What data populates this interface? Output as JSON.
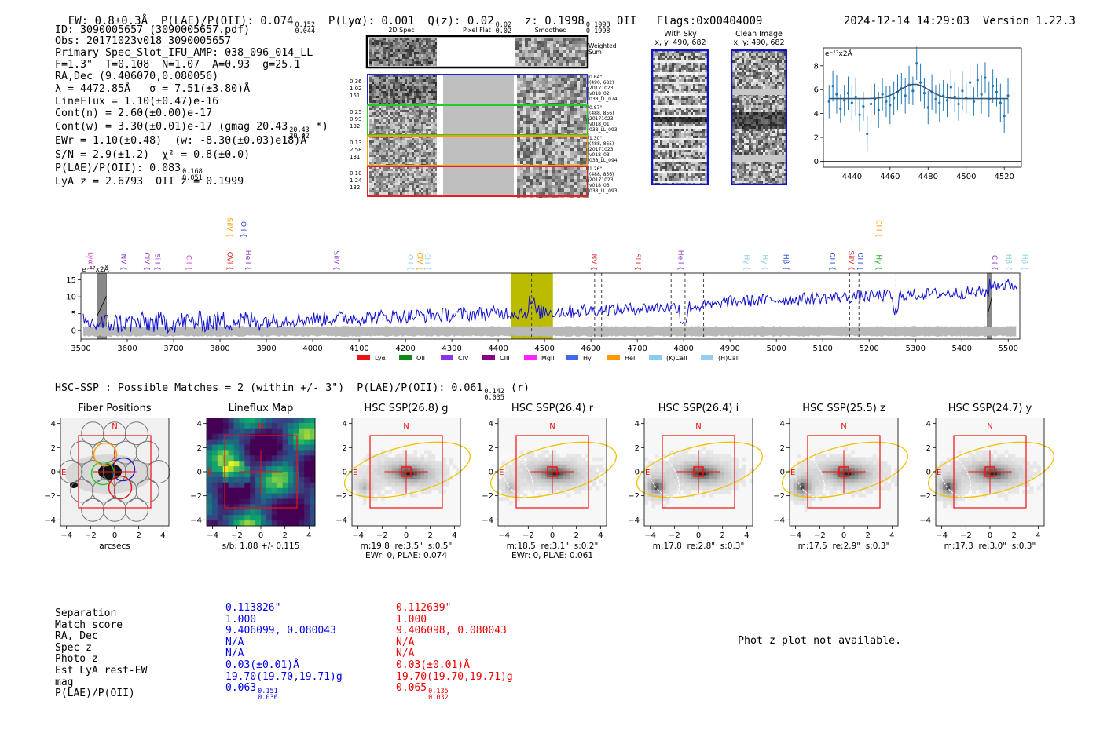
{
  "header": {
    "ew": "EW: 0.8±0.3Å",
    "plae_label": "P(LAE)/P(OII): 0.074",
    "plae_hi": "0.152",
    "plae_lo": "0.044",
    "plya": "P(Lyα): 0.001",
    "qz_label": "Q(z): 0.02",
    "qz_hi": "0.02",
    "qz_lo": "0.02",
    "z_label": "z: 0.1998",
    "z_hi": "0.1998",
    "z_lo": "0.1998",
    "z_line": "OII",
    "flags": "Flags:0x00404009",
    "timestamp": "2024-12-14 14:29:03",
    "version": "Version 1.22.3"
  },
  "info": {
    "id": "ID: 3090005657 (3090005657.pdf)",
    "obs": "Obs: 20171023v018_3090005657",
    "primary": "Primary Spec_Slot_IFU_AMP: 038_096_014_LL",
    "params": "F=1.3\"  T=0.108  N=1.07  A=0.93  g=25.1",
    "radec": "RA,Dec (9.406070,0.080056)",
    "lambda": "λ = 4472.85Å   σ = 7.51(±3.80)Å",
    "lineflux": "LineFlux = 1.10(±0.47)e-16",
    "contn": "Cont(n) = 2.60(±0.00)e-17",
    "contw": "Cont(w) = 3.30(±0.01)e-17 (gmag 20.43",
    "contw_hi": "20.43",
    "contw_lo": "20.42",
    "contw_end": "*)",
    "ewr": "EWr = 1.10(±0.48)  (w: -8.30(±0.03)e18)Å",
    "sn": "S/N = 2.9(±1.2)  χ² = 0.8(±0.0)",
    "plae": "P(LAE)/P(OII): 0.083",
    "plae_hi": "0.168",
    "plae_lo": "0.051",
    "lya": "LyA z = 2.6793  OII z = 0.1999"
  },
  "spec2d": {
    "col_2d": "2D Spec",
    "col_flat": "Pixel Flat",
    "col_smooth": "Smoothed",
    "weighted": "Weighted\nSum",
    "rows": [
      {
        "left": "0.36\n1.02\n151",
        "right": "0.64\"\n(490, 682)\n20171023\nv018_02\n038_LL_074",
        "color": "#2222cc"
      },
      {
        "left": "0.25\n0.93\n132",
        "right": "0.87\"\n(488, 856)\n20171023\nv018_01\n038_LL_093",
        "color": "#22cc22"
      },
      {
        "left": "0.13\n2.58\n131",
        "right": "1.30\"\n(488, 865)\n20171023\nv018_03\n038_LL_094",
        "color": "#ff9900"
      },
      {
        "left": "0.10\n1.24\n132",
        "right": "1.26\"\n(488, 856)\n20171023\nv018_03\n038_LL_093",
        "color": "#dd2222"
      }
    ]
  },
  "sky": {
    "with_sky_title": "With Sky",
    "with_sky_coords": "x, y: 490, 682",
    "clean_title": "Clean Image",
    "clean_coords": "x, y: 490, 682"
  },
  "zoom_plot": {
    "ylabel": "e⁻¹⁷x2Å",
    "xticks": [
      "4440",
      "4460",
      "4480",
      "4500",
      "4520"
    ],
    "yticks": [
      "0",
      "2",
      "4",
      "6",
      "8"
    ],
    "xlim": [
      4425,
      4529
    ],
    "ylim": [
      -0.5,
      9.5
    ],
    "points": [
      [
        4428,
        5.0,
        1.4
      ],
      [
        4430,
        6.3,
        1.3
      ],
      [
        4432,
        5.6,
        1.6
      ],
      [
        4434,
        4.4,
        1.2
      ],
      [
        4436,
        5.1,
        1.3
      ],
      [
        4438,
        5.7,
        1.4
      ],
      [
        4440,
        4.9,
        1.5
      ],
      [
        4442,
        5.4,
        1.6
      ],
      [
        4444,
        3.9,
        1.4
      ],
      [
        4446,
        4.6,
        1.2
      ],
      [
        4448,
        2.3,
        1.5
      ],
      [
        4450,
        4.8,
        1.6
      ],
      [
        4452,
        5.2,
        1.3
      ],
      [
        4454,
        4.3,
        1.5
      ],
      [
        4456,
        5.6,
        1.4
      ],
      [
        4458,
        5.0,
        1.3
      ],
      [
        4460,
        4.7,
        1.6
      ],
      [
        4462,
        5.3,
        1.4
      ],
      [
        4464,
        5.8,
        1.5
      ],
      [
        4466,
        6.1,
        1.3
      ],
      [
        4468,
        5.5,
        1.5
      ],
      [
        4470,
        6.4,
        1.6
      ],
      [
        4472,
        5.9,
        1.2
      ],
      [
        4474,
        8.2,
        1.4
      ],
      [
        4476,
        6.6,
        1.6
      ],
      [
        4478,
        5.7,
        1.3
      ],
      [
        4480,
        4.5,
        1.4
      ],
      [
        4482,
        5.8,
        1.5
      ],
      [
        4484,
        5.2,
        1.2
      ],
      [
        4486,
        4.9,
        1.6
      ],
      [
        4488,
        5.5,
        1.3
      ],
      [
        4490,
        5.1,
        1.4
      ],
      [
        4492,
        6.2,
        1.5
      ],
      [
        4494,
        5.4,
        1.3
      ],
      [
        4496,
        4.8,
        1.4
      ],
      [
        4498,
        5.9,
        1.6
      ],
      [
        4500,
        5.3,
        1.3
      ],
      [
        4502,
        6.6,
        1.5
      ],
      [
        4504,
        5.0,
        1.2
      ],
      [
        4506,
        6.8,
        1.4
      ],
      [
        4508,
        5.6,
        1.6
      ],
      [
        4510,
        7.0,
        1.3
      ],
      [
        4512,
        5.2,
        1.5
      ],
      [
        4514,
        6.3,
        1.4
      ],
      [
        4516,
        5.8,
        1.2
      ],
      [
        4518,
        4.9,
        1.6
      ],
      [
        4520,
        3.8,
        1.4
      ],
      [
        4522,
        5.5,
        1.5
      ]
    ],
    "fit": {
      "continuum": 5.25,
      "amp": 1.2,
      "center": 4472.85,
      "sigma": 7.51
    }
  },
  "full_spec": {
    "ylabel": "e⁻¹⁷x2Å",
    "xlim": [
      3500,
      5525
    ],
    "ylim": [
      -2.5,
      17
    ],
    "xticks": [
      "3500",
      "3600",
      "3700",
      "3800",
      "3900",
      "4000",
      "4100",
      "4200",
      "4300",
      "4400",
      "4500",
      "4600",
      "4700",
      "4800",
      "4900",
      "5000",
      "5100",
      "5200",
      "5300",
      "5400",
      "5500"
    ],
    "yticks": [
      "0",
      "5",
      "10",
      "15"
    ],
    "highlight": [
      4428,
      4518
    ],
    "dashed": [
      4472,
      4608,
      4623,
      4773,
      4803,
      4843,
      5158,
      5178,
      5258
    ],
    "shaded": [
      [
        3535,
        3555
      ],
      [
        5455,
        5465
      ]
    ],
    "lines": [
      {
        "name": "Lyα",
        "x": 3511,
        "row": 1,
        "color": "#cc44cc"
      },
      {
        "name": "NV",
        "x": 3582,
        "row": 1,
        "color": "#8833cc"
      },
      {
        "name": "CIV",
        "x": 3632,
        "row": 1,
        "color": "#8833cc"
      },
      {
        "name": "SiII",
        "x": 3655,
        "row": 1,
        "color": "#8833cc"
      },
      {
        "name": "CII",
        "x": 3723,
        "row": 1,
        "color": "#cc44cc"
      },
      {
        "name": "SiIV",
        "x": 3811,
        "row": 0,
        "color": "#ff9900"
      },
      {
        "name": "OII",
        "x": 3841,
        "row": 0,
        "color": "#2244dd"
      },
      {
        "name": "OVI",
        "x": 3811,
        "row": 1,
        "color": "#dd2222"
      },
      {
        "name": "HeII",
        "x": 3851,
        "row": 1,
        "color": "#8833cc"
      },
      {
        "name": "SiIV",
        "x": 4041,
        "row": 1,
        "color": "#8833cc"
      },
      {
        "name": "OII",
        "x": 4201,
        "row": 1,
        "color": "#88ccee"
      },
      {
        "name": "CIV",
        "x": 4221,
        "row": 1,
        "color": "#ff9900"
      },
      {
        "name": "CIII",
        "x": 4237,
        "row": 1,
        "color": "#88ccee"
      },
      {
        "name": "NV",
        "x": 4596,
        "row": 1,
        "color": "#dd2222"
      },
      {
        "name": "SiII",
        "x": 4691,
        "row": 1,
        "color": "#dd2222"
      },
      {
        "name": "HeII",
        "x": 4784,
        "row": 1,
        "color": "#8833cc"
      },
      {
        "name": "Hγ",
        "x": 4926,
        "row": 1,
        "color": "#88ccee"
      },
      {
        "name": "Hγ",
        "x": 4966,
        "row": 1,
        "color": "#88ccee"
      },
      {
        "name": "Hβ",
        "x": 5011,
        "row": 1,
        "color": "#2244dd"
      },
      {
        "name": "OIII",
        "x": 5111,
        "row": 1,
        "color": "#2244dd"
      },
      {
        "name": "SiIV",
        "x": 5151,
        "row": 1,
        "color": "#dd2222"
      },
      {
        "name": "OIII",
        "x": 5171,
        "row": 1,
        "color": "#2244dd"
      },
      {
        "name": "CIII",
        "x": 5211,
        "row": 0,
        "color": "#ff9900"
      },
      {
        "name": "Hγ",
        "x": 5211,
        "row": 1,
        "color": "#22aa22"
      },
      {
        "name": "CII",
        "x": 5461,
        "row": 1,
        "color": "#8833cc"
      },
      {
        "name": "Hβ",
        "x": 5491,
        "row": 1,
        "color": "#88ccee"
      },
      {
        "name": "Hβ",
        "x": 5526,
        "row": 1,
        "color": "#88ccee"
      }
    ],
    "legend": [
      {
        "name": "Lyα",
        "color": "#ee1111"
      },
      {
        "name": "OII",
        "color": "#118811"
      },
      {
        "name": "CIV",
        "color": "#8833ee"
      },
      {
        "name": "CIII",
        "color": "#880088"
      },
      {
        "name": "MgII",
        "color": "#ff22ff"
      },
      {
        "name": "Hγ",
        "color": "#4466ee"
      },
      {
        "name": "HeII",
        "color": "#ff9900"
      },
      {
        "name": "(K)CaII",
        "color": "#88ccee"
      },
      {
        "name": "(H)CaII",
        "color": "#99ccee"
      }
    ]
  },
  "hsc": {
    "title": "HSC-SSP : Possible Matches = 2 (within +/- 3\")  P(LAE)/P(OII): 0.061",
    "title_hi": "0.142",
    "title_lo": "0.035",
    "title_end": "(r)",
    "ticks_x": [
      "−4",
      "−2",
      "0",
      "2",
      "4"
    ],
    "ticks_y": [
      "4",
      "2",
      "0",
      "−2",
      "−4"
    ],
    "panels": [
      {
        "title": "Fiber Positions",
        "caption": "arcsecs",
        "type": "fibers"
      },
      {
        "title": "Lineflux Map",
        "caption": "s/b: 1.88 +/- 0.115",
        "type": "lineflux"
      },
      {
        "title": "HSC SSP(26.8) g",
        "caption": "m:19.8  re:3.5\"  s:0.5\"\nEWr: 0, PLAE: 0.074",
        "type": "img"
      },
      {
        "title": "HSC SSP(26.4) r",
        "caption": "m:18.5  re:3.1\"  s:0.2\"\nEWr: 0, PLAE: 0.061",
        "type": "img"
      },
      {
        "title": "HSC SSP(26.4) i",
        "caption": "m:17.8  re:2.8\"  s:0.3\"",
        "type": "img"
      },
      {
        "title": "HSC SSP(25.5) z",
        "caption": "m:17.5  re:2.9\"  s:0.3\"",
        "type": "img"
      },
      {
        "title": "HSC SSP(24.7) y",
        "caption": "m:17.3  re:3.0\"  s:0.3\"",
        "type": "img"
      }
    ],
    "label_n": "N",
    "label_e": "E"
  },
  "matches": {
    "labels": [
      "Separation",
      "Match score",
      "RA, Dec",
      "Spec z",
      "Photo z",
      "Est LyA rest-EW",
      "mag",
      "P(LAE)/P(OII)"
    ],
    "blue": [
      "0.113826\"",
      "1.000",
      "9.406099, 0.080043",
      "N/A",
      "N/A",
      "0.03(±0.01)Å",
      "19.70(19.70,19.71)g",
      "0.063"
    ],
    "blue_hi": "0.151",
    "blue_lo": "0.036",
    "red": [
      "0.112639\"",
      "1.000",
      "9.406098, 0.080043",
      "N/A",
      "N/A",
      "0.03(±0.01)Å",
      "19.70(19.70,19.71)g",
      "0.065"
    ],
    "red_hi": "0.135",
    "red_lo": "0.032",
    "blue_color": "#0000ee",
    "red_color": "#ee0000"
  },
  "photz": {
    "message": "Phot z plot not available."
  }
}
